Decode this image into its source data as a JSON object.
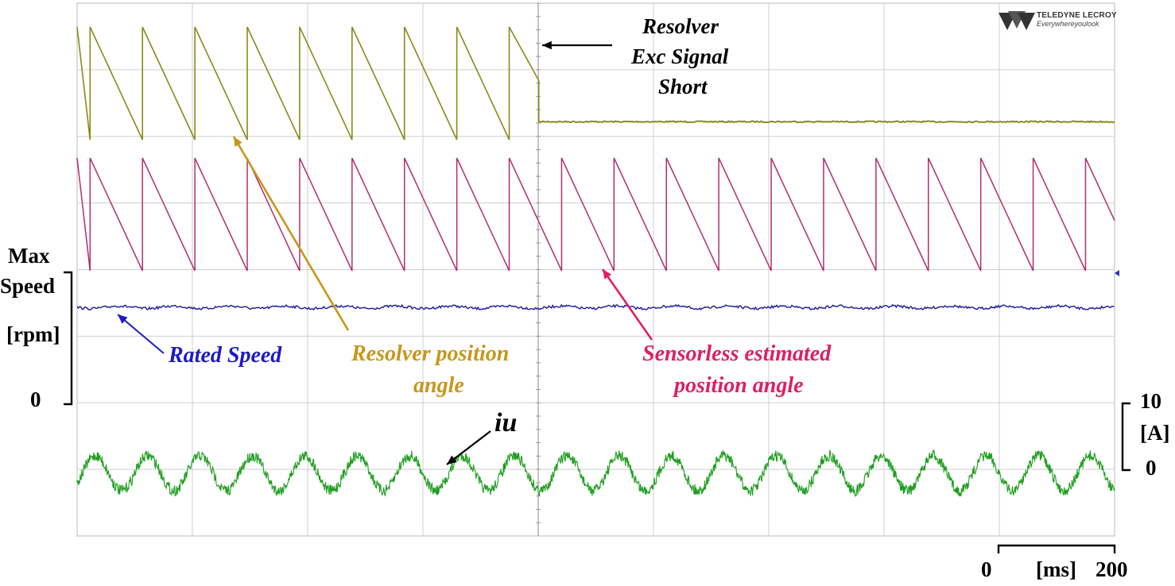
{
  "chart_data": {
    "type": "line",
    "time_scale": {
      "start": "0",
      "end": "200",
      "unit": "[ms]"
    },
    "annotations": {
      "fault": [
        "Resolver",
        "Exc Signal",
        "Short"
      ],
      "rated_speed": "Rated Speed",
      "resolver_angle": [
        "Resolver position",
        "angle"
      ],
      "sensorless_angle": [
        "Sensorless estimated",
        "position angle"
      ],
      "current": "iu"
    },
    "speed_axis": {
      "top": [
        "Max",
        "Speed"
      ],
      "unit": "[rpm]",
      "bottom": "0"
    },
    "current_axis": {
      "top": "10",
      "unit": "[A]",
      "bottom": "0"
    },
    "series": [
      {
        "name": "Resolver position angle",
        "kind": "sawtooth-down",
        "color": "#8a8a1a",
        "start_ms": 0,
        "fault_ms": 445,
        "end_ms": 1000,
        "period_ms": 50.5,
        "range": [
          0,
          1
        ],
        "value_after_fault": 0.16
      },
      {
        "name": "Sensorless estimated position angle",
        "kind": "sawtooth-down",
        "color": "#b0306e",
        "start_ms": 0,
        "end_ms": 1000,
        "period_ms": 50.5,
        "range": [
          0,
          1
        ]
      },
      {
        "name": "Rated Speed",
        "kind": "noisy-constant",
        "color": "#1a1a9a",
        "value_fraction_of_max": 0.74
      },
      {
        "name": "iu",
        "kind": "noisy-sine",
        "color": "#1a9a1a",
        "offset_A": 0.0,
        "amplitude_A": 1.1,
        "period_ms": 50.5
      }
    ]
  },
  "logo": {
    "brand": "TELEDYNE LECROY",
    "tagline": "Everywhereyoulook"
  }
}
